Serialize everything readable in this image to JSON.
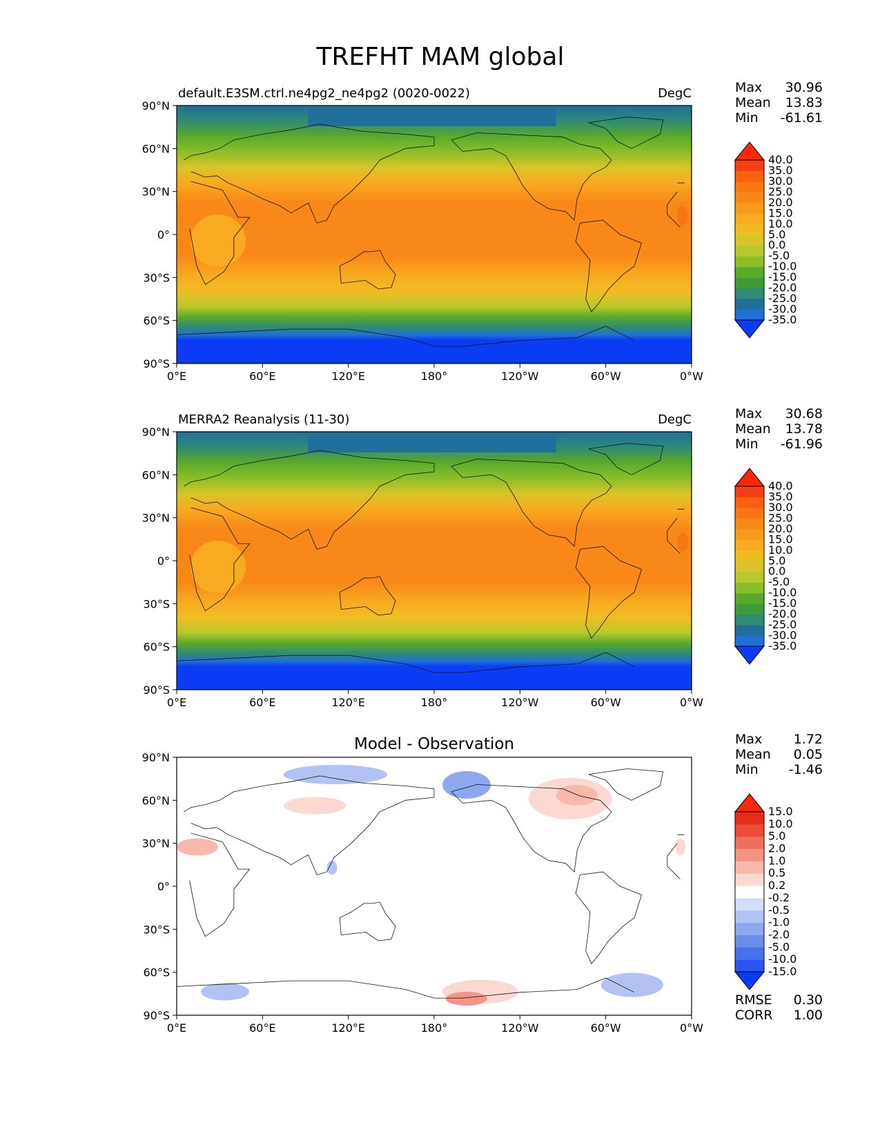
{
  "figure": {
    "title": "TREFHT MAM global"
  },
  "chart_data": [
    {
      "type": "heatmap",
      "title": "default.E3SM.ctrl.ne4pg2_ne4pg2 (0020-0022)",
      "units": "DegC",
      "stats": {
        "max": "30.96",
        "mean": "13.83",
        "min": "-61.61"
      },
      "x_ticks": [
        "0°E",
        "60°E",
        "120°E",
        "180°",
        "120°W",
        "60°W",
        "0°W"
      ],
      "y_ticks": [
        "90°N",
        "60°N",
        "30°N",
        "0°",
        "30°S",
        "60°S",
        "90°S"
      ],
      "xlim": [
        0,
        360
      ],
      "ylim": [
        -90,
        90
      ],
      "colorbar": {
        "levels": [
          "-35.0",
          "-30.0",
          "-25.0",
          "-20.0",
          "-15.0",
          "-10.0",
          "-5.0",
          "0.0",
          "5.0",
          "10.0",
          "15.0",
          "20.0",
          "25.0",
          "30.0",
          "35.0",
          "40.0"
        ],
        "colors": [
          "#0a3cf5",
          "#1f6fd8",
          "#1f6f9a",
          "#2f8a74",
          "#3f9a3a",
          "#5aaa2a",
          "#8cbe28",
          "#b8c82c",
          "#d8c428",
          "#f0bc24",
          "#f8aa20",
          "#f89a1c",
          "#f88818",
          "#f87614",
          "#f86010",
          "#f44012",
          "#f82808"
        ]
      }
    },
    {
      "type": "heatmap",
      "title": "MERRA2 Reanalysis (11-30)",
      "units": "DegC",
      "stats": {
        "max": "30.68",
        "mean": "13.78",
        "min": "-61.96"
      },
      "x_ticks": [
        "0°E",
        "60°E",
        "120°E",
        "180°",
        "120°W",
        "60°W",
        "0°W"
      ],
      "y_ticks": [
        "90°N",
        "60°N",
        "30°N",
        "0°",
        "30°S",
        "60°S",
        "90°S"
      ],
      "xlim": [
        0,
        360
      ],
      "ylim": [
        -90,
        90
      ],
      "colorbar": {
        "levels": [
          "-35.0",
          "-30.0",
          "-25.0",
          "-20.0",
          "-15.0",
          "-10.0",
          "-5.0",
          "0.0",
          "5.0",
          "10.0",
          "15.0",
          "20.0",
          "25.0",
          "30.0",
          "35.0",
          "40.0"
        ],
        "colors": [
          "#0a3cf5",
          "#1f6fd8",
          "#1f6f9a",
          "#2f8a74",
          "#3f9a3a",
          "#5aaa2a",
          "#8cbe28",
          "#b8c82c",
          "#d8c428",
          "#f0bc24",
          "#f8aa20",
          "#f89a1c",
          "#f88818",
          "#f87614",
          "#f86010",
          "#f44012",
          "#f82808"
        ]
      }
    },
    {
      "type": "heatmap",
      "title": "Model - Observation",
      "units": "",
      "stats": {
        "max": "1.72",
        "mean": "0.05",
        "min": "-1.46"
      },
      "metrics": {
        "rmse_label": "RMSE",
        "rmse": "0.30",
        "corr_label": "CORR",
        "corr": "1.00"
      },
      "x_ticks": [
        "0°E",
        "60°E",
        "120°E",
        "180°",
        "120°W",
        "60°W",
        "0°W"
      ],
      "y_ticks": [
        "90°N",
        "60°N",
        "30°N",
        "0°",
        "30°S",
        "60°S",
        "90°S"
      ],
      "xlim": [
        0,
        360
      ],
      "ylim": [
        -90,
        90
      ],
      "colorbar": {
        "levels": [
          "-15.0",
          "-10.0",
          "-5.0",
          "-2.0",
          "-1.0",
          "-0.5",
          "-0.2",
          "0.2",
          "0.5",
          "1.0",
          "2.0",
          "5.0",
          "10.0",
          "15.0"
        ],
        "colors": [
          "#0a3cf5",
          "#2a55f0",
          "#4a72e8",
          "#6a8ee8",
          "#8ea8ee",
          "#b2c2f2",
          "#d4ddf8",
          "#ffffff",
          "#fbd8d2",
          "#f8b8ac",
          "#f49484",
          "#f07060",
          "#ec4c3c",
          "#e82c1c",
          "#f82808"
        ]
      }
    }
  ],
  "labels": {
    "max": "Max",
    "mean": "Mean",
    "min": "Min"
  }
}
